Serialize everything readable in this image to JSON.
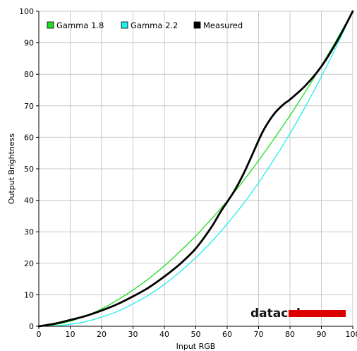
{
  "chart_data": {
    "type": "line",
    "xlabel": "Input RGB",
    "ylabel": "Output Brightness",
    "xlim": [
      0,
      100
    ],
    "ylim": [
      0,
      100
    ],
    "x_ticks": [
      0,
      10,
      20,
      30,
      40,
      50,
      60,
      70,
      80,
      90,
      100
    ],
    "y_ticks": [
      0,
      10,
      20,
      30,
      40,
      50,
      60,
      70,
      80,
      90,
      100
    ],
    "grid": true,
    "legend_position": "top-left",
    "series": [
      {
        "name": "Gamma 1.8",
        "color": "#22dd22",
        "x": [
          0,
          5,
          10,
          15,
          20,
          25,
          30,
          35,
          40,
          45,
          50,
          55,
          60,
          65,
          70,
          75,
          80,
          85,
          90,
          95,
          100
        ],
        "values": [
          0,
          0.5,
          1.6,
          3.3,
          5.5,
          8.3,
          11.5,
          15.1,
          19.2,
          23.8,
          28.7,
          34.1,
          39.8,
          46.0,
          52.6,
          59.6,
          66.9,
          74.6,
          82.7,
          91.2,
          100
        ]
      },
      {
        "name": "Gamma 2.2",
        "color": "#22eeee",
        "x": [
          0,
          5,
          10,
          15,
          20,
          25,
          30,
          35,
          40,
          45,
          50,
          55,
          60,
          65,
          70,
          75,
          80,
          85,
          90,
          95,
          100
        ],
        "values": [
          0,
          0.1,
          0.6,
          1.5,
          2.9,
          4.7,
          7.1,
          9.9,
          13.3,
          17.3,
          21.8,
          26.8,
          32.5,
          38.7,
          45.6,
          53.1,
          61.2,
          69.9,
          79.3,
          89.3,
          100
        ]
      },
      {
        "name": "Measured",
        "color": "#000000",
        "x": [
          0,
          5,
          10,
          15,
          20,
          25,
          30,
          35,
          40,
          45,
          50,
          55,
          58,
          62,
          65,
          68,
          70,
          72,
          75,
          78,
          80,
          85,
          90,
          95,
          100
        ],
        "values": [
          0,
          0.8,
          2.0,
          3.3,
          5.0,
          7.0,
          9.5,
          12.3,
          15.8,
          19.8,
          24.7,
          31.5,
          36.5,
          42.5,
          48.0,
          54.5,
          59.0,
          63.0,
          67.5,
          70.5,
          72.0,
          76.5,
          82.5,
          90.5,
          100
        ]
      }
    ]
  },
  "legend": {
    "items": [
      {
        "label": "Gamma 1.8",
        "color": "#22dd22"
      },
      {
        "label": "Gamma 2.2",
        "color": "#22eeee"
      },
      {
        "label": "Measured",
        "color": "#000000"
      }
    ]
  },
  "logo": {
    "text": "datacolor",
    "color": "#dd0000"
  },
  "colors": {
    "grid": "#c8c8c8",
    "background": "#ffffff"
  }
}
